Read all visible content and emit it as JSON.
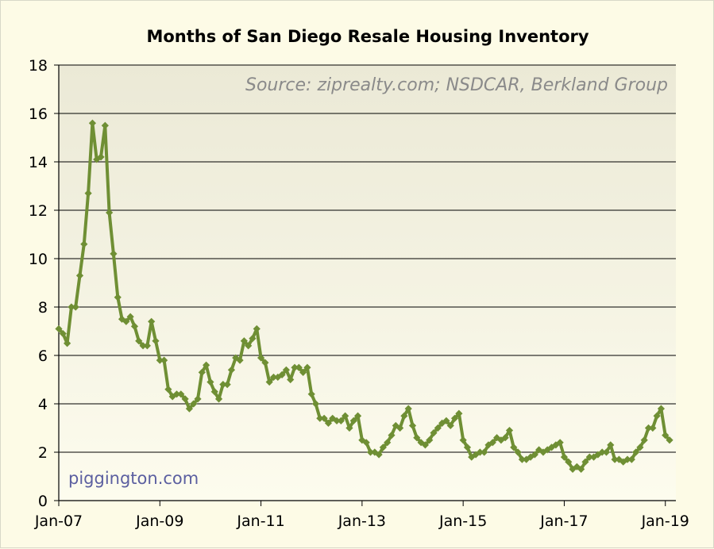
{
  "chart_data": {
    "type": "line",
    "title": "Months of San Diego Resale Housing Inventory",
    "source_note": "Source: ziprealty.com; NSDCAR, Berkland Group",
    "watermark": "piggington.com",
    "xlabel": "",
    "ylabel": "",
    "ylim": [
      0,
      18
    ],
    "yticks": [
      "0",
      "2",
      "4",
      "6",
      "8",
      "10",
      "12",
      "14",
      "16",
      "18"
    ],
    "xlim": [
      "Jan-07",
      "Mar-19"
    ],
    "xticks": [
      {
        "label": "Jan-07",
        "month_index": 0
      },
      {
        "label": "Jan-09",
        "month_index": 24
      },
      {
        "label": "Jan-11",
        "month_index": 48
      },
      {
        "label": "Jan-13",
        "month_index": 72
      },
      {
        "label": "Jan-15",
        "month_index": 96
      },
      {
        "label": "Jan-17",
        "month_index": 120
      },
      {
        "label": "Jan-19",
        "month_index": 144
      }
    ],
    "grid": true,
    "line_color": "#6f8f34",
    "series": [
      {
        "name": "",
        "start": "Jan-07",
        "frequency": "monthly",
        "values": [
          7.1,
          6.9,
          6.5,
          8.0,
          8.0,
          9.3,
          10.6,
          12.7,
          15.6,
          14.1,
          14.2,
          15.5,
          11.9,
          10.2,
          8.4,
          7.5,
          7.4,
          7.6,
          7.2,
          6.6,
          6.4,
          6.4,
          7.4,
          6.6,
          5.8,
          5.8,
          4.6,
          4.3,
          4.4,
          4.4,
          4.2,
          3.8,
          4.0,
          4.2,
          5.3,
          5.6,
          4.9,
          4.5,
          4.2,
          4.8,
          4.8,
          5.4,
          5.9,
          5.8,
          6.6,
          6.4,
          6.7,
          7.1,
          5.9,
          5.7,
          4.9,
          5.1,
          5.1,
          5.2,
          5.4,
          5.0,
          5.5,
          5.5,
          5.3,
          5.5,
          4.4,
          4.0,
          3.4,
          3.4,
          3.2,
          3.4,
          3.3,
          3.3,
          3.5,
          3.0,
          3.3,
          3.5,
          2.5,
          2.4,
          2.0,
          2.0,
          1.9,
          2.2,
          2.4,
          2.7,
          3.1,
          3.0,
          3.5,
          3.8,
          3.1,
          2.6,
          2.4,
          2.3,
          2.5,
          2.8,
          3.0,
          3.2,
          3.3,
          3.1,
          3.4,
          3.6,
          2.5,
          2.2,
          1.8,
          1.9,
          2.0,
          2.0,
          2.3,
          2.4,
          2.6,
          2.5,
          2.6,
          2.9,
          2.2,
          2.0,
          1.7,
          1.7,
          1.8,
          1.9,
          2.1,
          2.0,
          2.1,
          2.2,
          2.3,
          2.4,
          1.8,
          1.6,
          1.3,
          1.4,
          1.3,
          1.6,
          1.8,
          1.8,
          1.9,
          2.0,
          2.0,
          2.3,
          1.7,
          1.7,
          1.6,
          1.7,
          1.7,
          2.0,
          2.2,
          2.5,
          3.0,
          3.0,
          3.5,
          3.8,
          2.7,
          2.5
        ]
      }
    ]
  }
}
